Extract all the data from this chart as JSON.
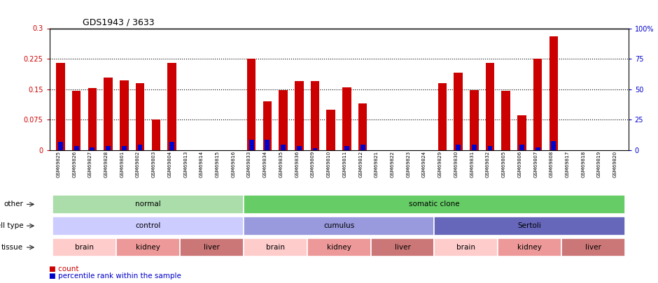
{
  "title": "GDS1943 / 3633",
  "samples": [
    "GSM69825",
    "GSM69826",
    "GSM69827",
    "GSM69828",
    "GSM69801",
    "GSM69802",
    "GSM69803",
    "GSM69804",
    "GSM69813",
    "GSM69814",
    "GSM69815",
    "GSM69816",
    "GSM69833",
    "GSM69834",
    "GSM69835",
    "GSM69836",
    "GSM69809",
    "GSM69810",
    "GSM69811",
    "GSM69812",
    "GSM69821",
    "GSM69822",
    "GSM69823",
    "GSM69824",
    "GSM69829",
    "GSM69830",
    "GSM69831",
    "GSM69832",
    "GSM69805",
    "GSM69806",
    "GSM69807",
    "GSM69808",
    "GSM69817",
    "GSM69818",
    "GSM69819",
    "GSM69820"
  ],
  "count_values": [
    0.215,
    0.145,
    0.152,
    0.178,
    0.172,
    0.165,
    0.075,
    0.215,
    0.0,
    0.0,
    0.0,
    0.0,
    0.225,
    0.12,
    0.148,
    0.17,
    0.17,
    0.1,
    0.155,
    0.115,
    0.0,
    0.0,
    0.0,
    0.0,
    0.165,
    0.19,
    0.148,
    0.215,
    0.145,
    0.085,
    0.225,
    0.28,
    0.0,
    0.0,
    0.0,
    0.0
  ],
  "percentile_values": [
    0.02,
    0.01,
    0.007,
    0.01,
    0.01,
    0.013,
    0.0,
    0.02,
    0.0,
    0.0,
    0.0,
    0.0,
    0.025,
    0.025,
    0.013,
    0.01,
    0.005,
    0.0,
    0.01,
    0.013,
    0.0,
    0.0,
    0.0,
    0.0,
    0.0,
    0.013,
    0.013,
    0.01,
    0.0,
    0.013,
    0.007,
    0.022,
    0.0,
    0.0,
    0.0,
    0.0
  ],
  "ylim_left": [
    0,
    0.3
  ],
  "ylim_right": [
    0,
    100
  ],
  "yticks_left": [
    0,
    0.075,
    0.15,
    0.225,
    0.3
  ],
  "yticks_right": [
    0,
    25,
    50,
    75,
    100
  ],
  "ytick_labels_left": [
    "0",
    "0.075",
    "0.15",
    "0.225",
    "0.3"
  ],
  "ytick_labels_right": [
    "0",
    "25",
    "50",
    "75",
    "100%"
  ],
  "bar_color": "#cc0000",
  "percentile_color": "#0000cc",
  "other_row": {
    "label": "other",
    "groups": [
      {
        "text": "normal",
        "start": 0,
        "end": 12,
        "color": "#aaddaa"
      },
      {
        "text": "somatic clone",
        "start": 12,
        "end": 36,
        "color": "#66cc66"
      }
    ]
  },
  "celltype_row": {
    "label": "cell type",
    "groups": [
      {
        "text": "control",
        "start": 0,
        "end": 12,
        "color": "#ccccff"
      },
      {
        "text": "cumulus",
        "start": 12,
        "end": 24,
        "color": "#9999dd"
      },
      {
        "text": "Sertoli",
        "start": 24,
        "end": 36,
        "color": "#6666bb"
      }
    ]
  },
  "tissue_row": {
    "label": "tissue",
    "groups": [
      {
        "text": "brain",
        "start": 0,
        "end": 4,
        "color": "#ffcccc"
      },
      {
        "text": "kidney",
        "start": 4,
        "end": 8,
        "color": "#ee9999"
      },
      {
        "text": "liver",
        "start": 8,
        "end": 12,
        "color": "#cc7777"
      },
      {
        "text": "brain",
        "start": 12,
        "end": 16,
        "color": "#ffcccc"
      },
      {
        "text": "kidney",
        "start": 16,
        "end": 20,
        "color": "#ee9999"
      },
      {
        "text": "liver",
        "start": 20,
        "end": 24,
        "color": "#cc7777"
      },
      {
        "text": "brain",
        "start": 24,
        "end": 28,
        "color": "#ffcccc"
      },
      {
        "text": "kidney",
        "start": 28,
        "end": 32,
        "color": "#ee9999"
      },
      {
        "text": "liver",
        "start": 32,
        "end": 36,
        "color": "#cc7777"
      }
    ]
  },
  "legend": [
    {
      "label": "count",
      "color": "#cc0000"
    },
    {
      "label": "percentile rank within the sample",
      "color": "#0000cc"
    }
  ]
}
